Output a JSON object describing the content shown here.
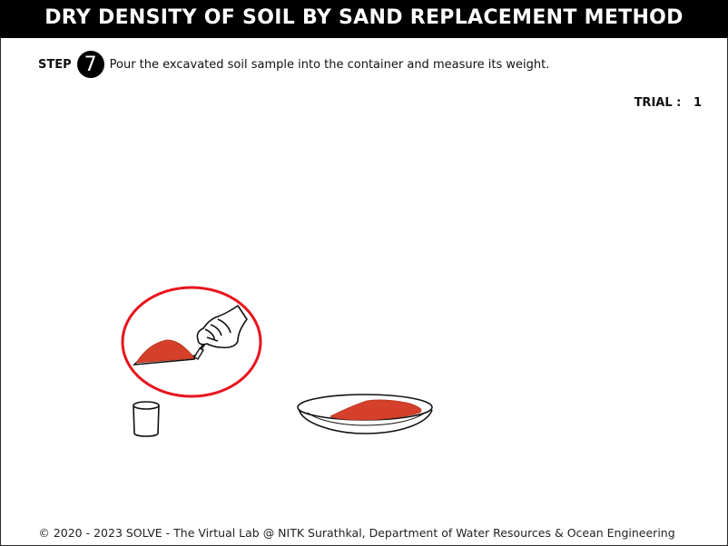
{
  "header": {
    "title": "DRY DENSITY OF SOIL BY SAND REPLACEMENT METHOD"
  },
  "step": {
    "label": "STEP",
    "number": "7",
    "instruction": "Pour the excavated soil sample into the container and measure its weight."
  },
  "trial": {
    "label": "TRIAL :",
    "value": "1"
  },
  "scene": {
    "items": [
      "trowel-with-soil",
      "highlight-circle",
      "hand-icon",
      "container",
      "dish-with-soil"
    ],
    "colors": {
      "soil": "#d4402a",
      "highlight": "#e8141e",
      "outline": "#111111"
    }
  },
  "footer": {
    "copyright": "© 2020 - 2023 SOLVE - The Virtual Lab @ NITK Surathkal, Department of Water Resources & Ocean Engineering"
  }
}
